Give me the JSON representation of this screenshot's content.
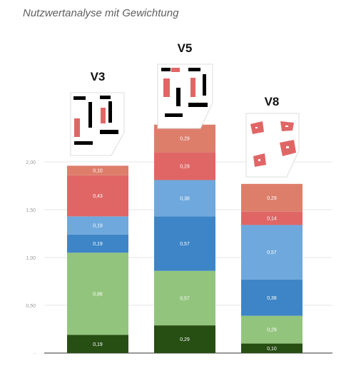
{
  "title": "Nutzwertanalyse mit Gewichtung",
  "chart_data": {
    "type": "bar",
    "stacked": true,
    "categories": [
      "V3",
      "V5",
      "V8"
    ],
    "ylim": [
      0,
      2.3
    ],
    "yticks": [
      "",
      "0,50",
      "1,00",
      "1,50",
      "2,00"
    ],
    "grid": true,
    "series": [
      {
        "color": "#274e13",
        "values": [
          0.19,
          0.29,
          0.1
        ],
        "labels": [
          "0,19",
          "0,29",
          "0,10"
        ]
      },
      {
        "color": "#93c47d",
        "values": [
          0.86,
          0.57,
          0.29
        ],
        "labels": [
          "0,86",
          "0,57",
          "0,29"
        ]
      },
      {
        "color": "#3d85c6",
        "values": [
          0.19,
          0.57,
          0.38
        ],
        "labels": [
          "0,19",
          "0,57",
          "0,38"
        ]
      },
      {
        "color": "#6fa8dc",
        "values": [
          0.19,
          0.38,
          0.57
        ],
        "labels": [
          "0,19",
          "0,38",
          "0,57"
        ]
      },
      {
        "color": "#e06666",
        "values": [
          0.43,
          0.29,
          0.14
        ],
        "labels": [
          "0,43",
          "0,29",
          "0,14"
        ]
      },
      {
        "color": "#dd7e6b",
        "values": [
          0.1,
          0.29,
          0.29
        ],
        "labels": [
          "0,10",
          "0,29",
          "0,29"
        ]
      }
    ]
  },
  "thumbnails": [
    "v3-floorplan-icon",
    "v5-floorplan-icon",
    "v8-floorplan-icon"
  ]
}
